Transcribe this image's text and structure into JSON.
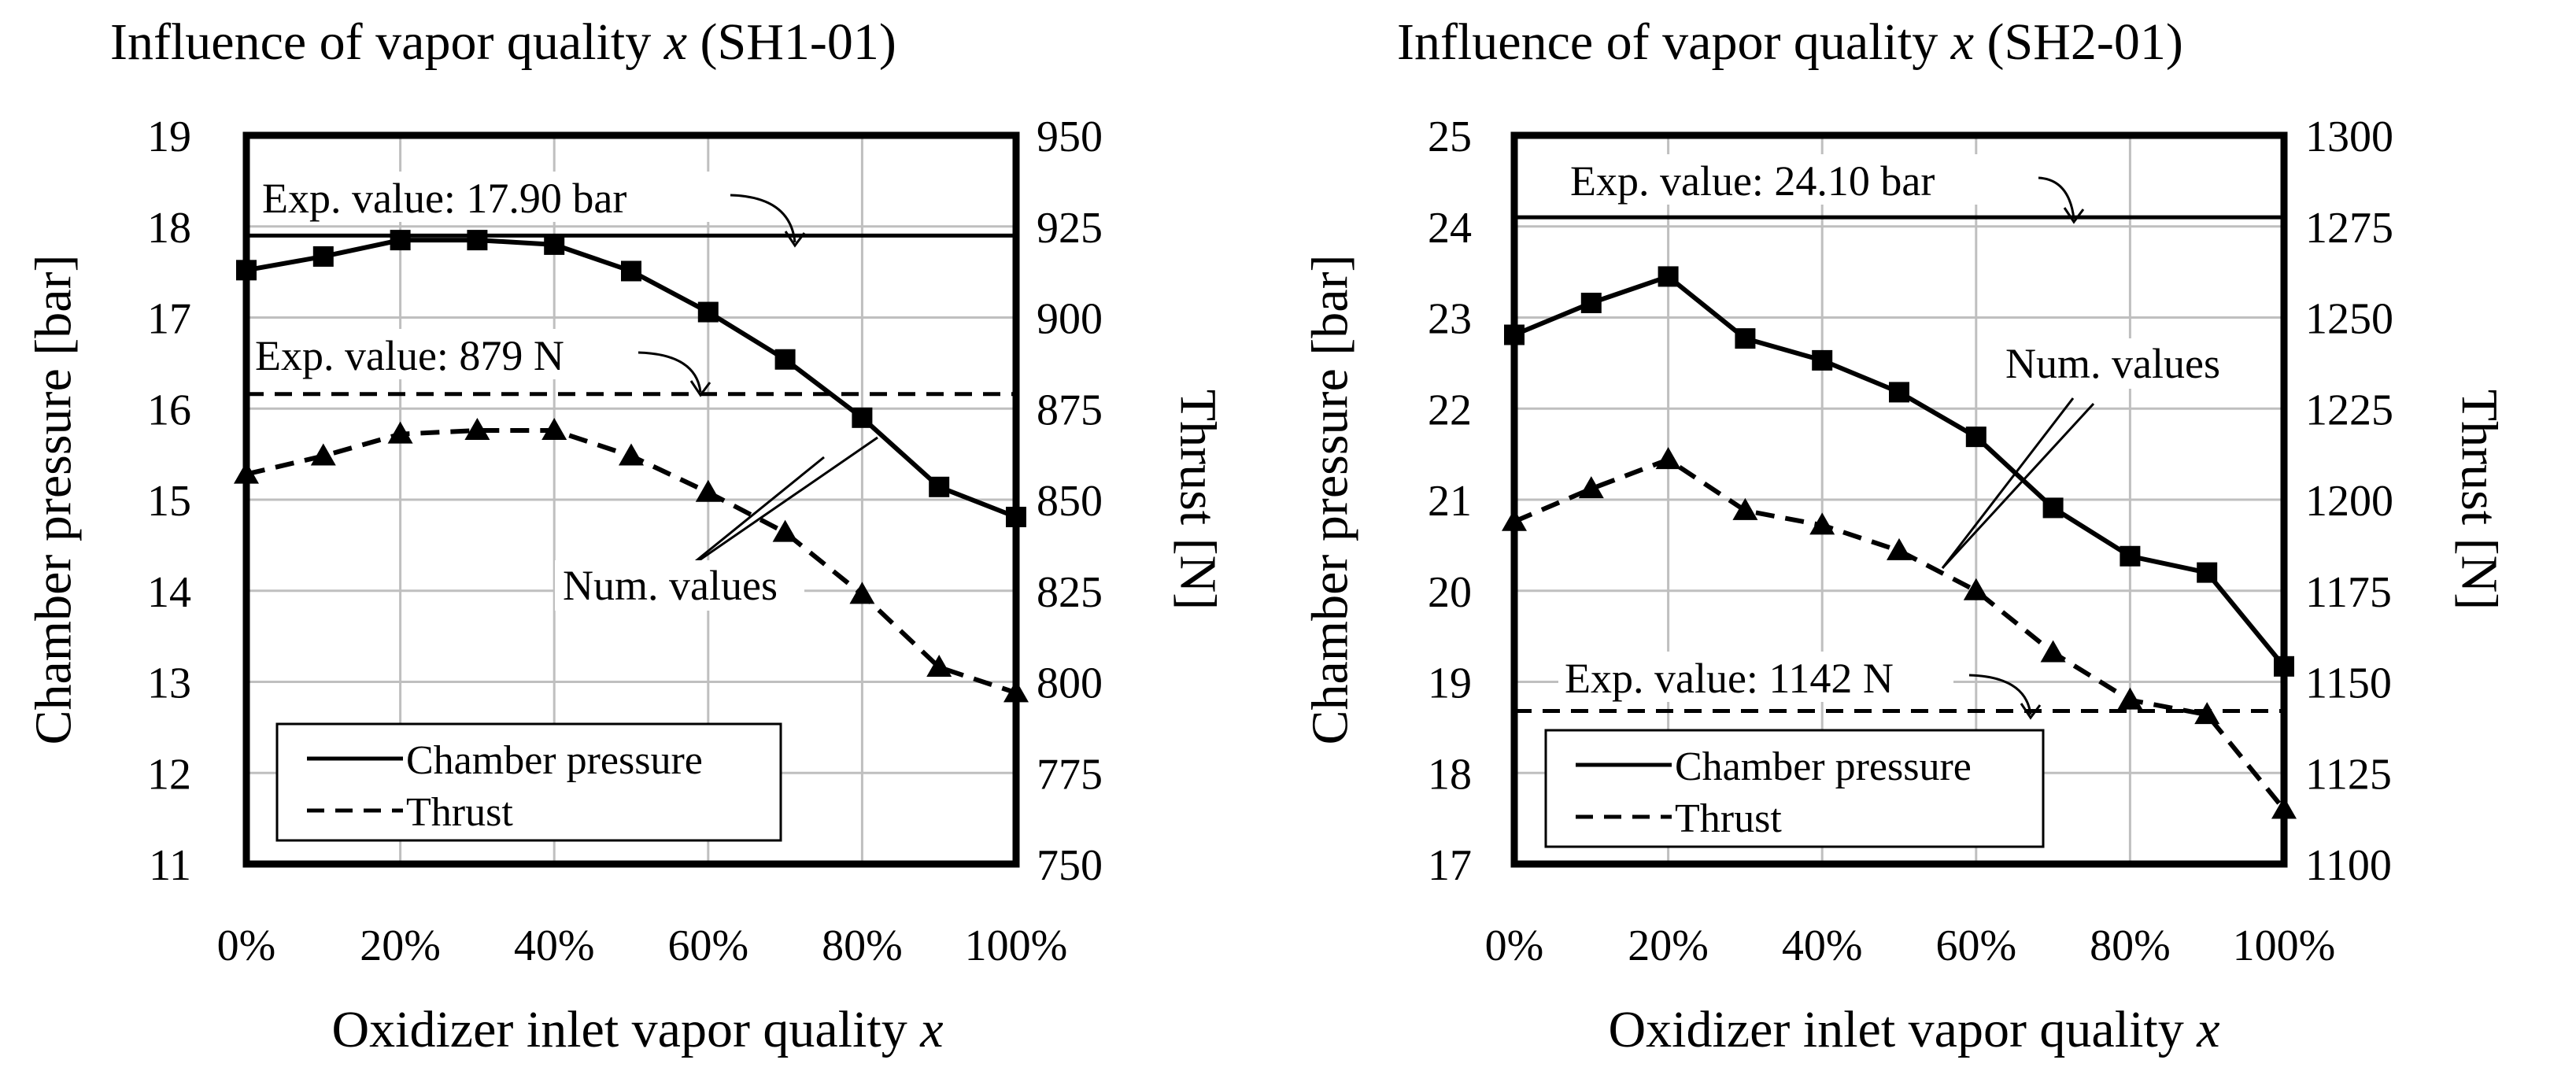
{
  "chart_data": [
    {
      "type": "line",
      "title_prefix": "Influence of vapor quality ",
      "title_var": "x",
      "title_suffix": " (SH1-01)",
      "xlabel_prefix": "Oxidizer inlet vapor quality ",
      "xlabel_var": "x",
      "ylabel": "Chamber pressure [bar]",
      "y2label": "Thrust [N]",
      "x": [
        0,
        10,
        20,
        30,
        40,
        50,
        60,
        70,
        80,
        90,
        100
      ],
      "x_tick_labels": [
        "0%",
        "20%",
        "40%",
        "60%",
        "80%",
        "100%"
      ],
      "xlim": [
        0,
        100
      ],
      "ylim": [
        11,
        19
      ],
      "y_ticks": [
        11,
        12,
        13,
        14,
        15,
        16,
        17,
        18,
        19
      ],
      "y2lim": [
        750,
        950
      ],
      "y2_ticks": [
        750,
        775,
        800,
        825,
        850,
        875,
        900,
        925,
        950
      ],
      "grid": true,
      "series": [
        {
          "name": "Chamber pressure",
          "axis": "left",
          "line": "solid",
          "marker": "square",
          "values": [
            17.52,
            17.67,
            17.85,
            17.85,
            17.8,
            17.51,
            17.06,
            16.54,
            15.9,
            15.14,
            14.81
          ]
        },
        {
          "name": "Thrust",
          "axis": "right",
          "line": "dashed",
          "marker": "triangle",
          "values": [
            857,
            862,
            868,
            869,
            869,
            862,
            852,
            841,
            824,
            804,
            797
          ]
        }
      ],
      "reference_lines": [
        {
          "label": "Exp. value: 17.90 bar",
          "axis": "left",
          "value": 17.9,
          "line": "solid"
        },
        {
          "label": "Exp. value: 879 N",
          "axis": "right",
          "value": 879,
          "line": "dashed"
        }
      ],
      "annotation": "Num. values",
      "legend": {
        "position": "bottom-left",
        "entries": [
          "Chamber pressure",
          "Thrust"
        ]
      }
    },
    {
      "type": "line",
      "title_prefix": "Influence of vapor quality ",
      "title_var": "x",
      "title_suffix": " (SH2-01)",
      "xlabel_prefix": "Oxidizer inlet vapor quality ",
      "xlabel_var": "x",
      "ylabel": "Chamber pressure [bar]",
      "y2label": "Thrust [N]",
      "x": [
        0,
        10,
        20,
        30,
        40,
        50,
        60,
        70,
        80,
        90,
        100
      ],
      "x_tick_labels": [
        "0%",
        "20%",
        "40%",
        "60%",
        "80%",
        "100%"
      ],
      "xlim": [
        0,
        100
      ],
      "ylim": [
        17,
        25
      ],
      "y_ticks": [
        17,
        18,
        19,
        20,
        21,
        22,
        23,
        24,
        25
      ],
      "y2lim": [
        1100,
        1300
      ],
      "y2_ticks": [
        1100,
        1125,
        1150,
        1175,
        1200,
        1225,
        1250,
        1275,
        1300
      ],
      "grid": true,
      "series": [
        {
          "name": "Chamber pressure",
          "axis": "left",
          "line": "solid",
          "marker": "square",
          "values": [
            22.81,
            23.16,
            23.45,
            22.77,
            22.53,
            22.18,
            21.69,
            20.91,
            20.38,
            20.2,
            19.17
          ]
        },
        {
          "name": "Thrust",
          "axis": "right",
          "line": "dashed",
          "marker": "triangle",
          "values": [
            1194,
            1203,
            1211,
            1197,
            1193,
            1186,
            1175,
            1158,
            1145,
            1141,
            1115
          ]
        }
      ],
      "reference_lines": [
        {
          "label": "Exp. value: 24.10 bar",
          "axis": "left",
          "value": 24.1,
          "line": "solid"
        },
        {
          "label": "Exp. value: 1142 N",
          "axis": "right",
          "value": 1142,
          "line": "dashed"
        }
      ],
      "annotation": "Num. values",
      "legend": {
        "position": "bottom-left",
        "entries": [
          "Chamber pressure",
          "Thrust"
        ]
      }
    }
  ]
}
